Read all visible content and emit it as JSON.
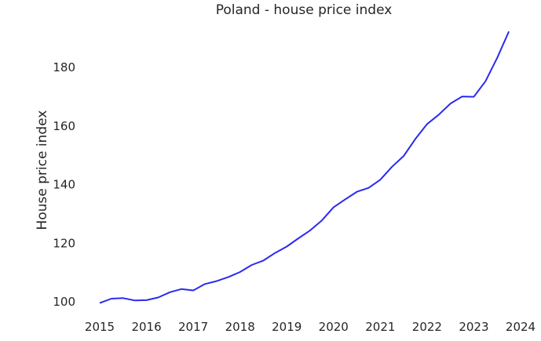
{
  "chart_data": {
    "type": "line",
    "title": "Poland - house price index",
    "xlabel": "",
    "ylabel": "House price index",
    "xlim": [
      2014.8,
      2024.2
    ],
    "ylim": [
      96,
      196
    ],
    "xticks": [
      "2015",
      "2016",
      "2017",
      "2018",
      "2019",
      "2020",
      "2021",
      "2022",
      "2023",
      "2024"
    ],
    "yticks": [
      "100",
      "120",
      "140",
      "160",
      "180"
    ],
    "grid": false,
    "line_color": "#2a2af0",
    "series": [
      {
        "name": "House price index",
        "x": [
          2015.0,
          2015.25,
          2015.5,
          2015.75,
          2016.0,
          2016.25,
          2016.5,
          2016.75,
          2017.0,
          2017.25,
          2017.5,
          2017.75,
          2018.0,
          2018.25,
          2018.5,
          2018.75,
          2019.0,
          2019.25,
          2019.5,
          2019.75,
          2020.0,
          2020.25,
          2020.5,
          2020.75,
          2021.0,
          2021.25,
          2021.5,
          2021.75,
          2022.0,
          2022.25,
          2022.5,
          2022.75,
          2023.0,
          2023.25,
          2023.5,
          2023.75
        ],
        "values": [
          99.3,
          100.8,
          101.0,
          100.2,
          100.3,
          101.2,
          103.0,
          104.1,
          103.6,
          105.8,
          106.8,
          108.2,
          109.9,
          112.3,
          113.8,
          116.4,
          118.6,
          121.4,
          124.1,
          127.5,
          132.0,
          134.7,
          137.3,
          138.6,
          141.4,
          145.8,
          149.5,
          155.3,
          160.4,
          163.6,
          167.4,
          169.8,
          169.7,
          175.0,
          183.0,
          192.0
        ]
      }
    ]
  }
}
